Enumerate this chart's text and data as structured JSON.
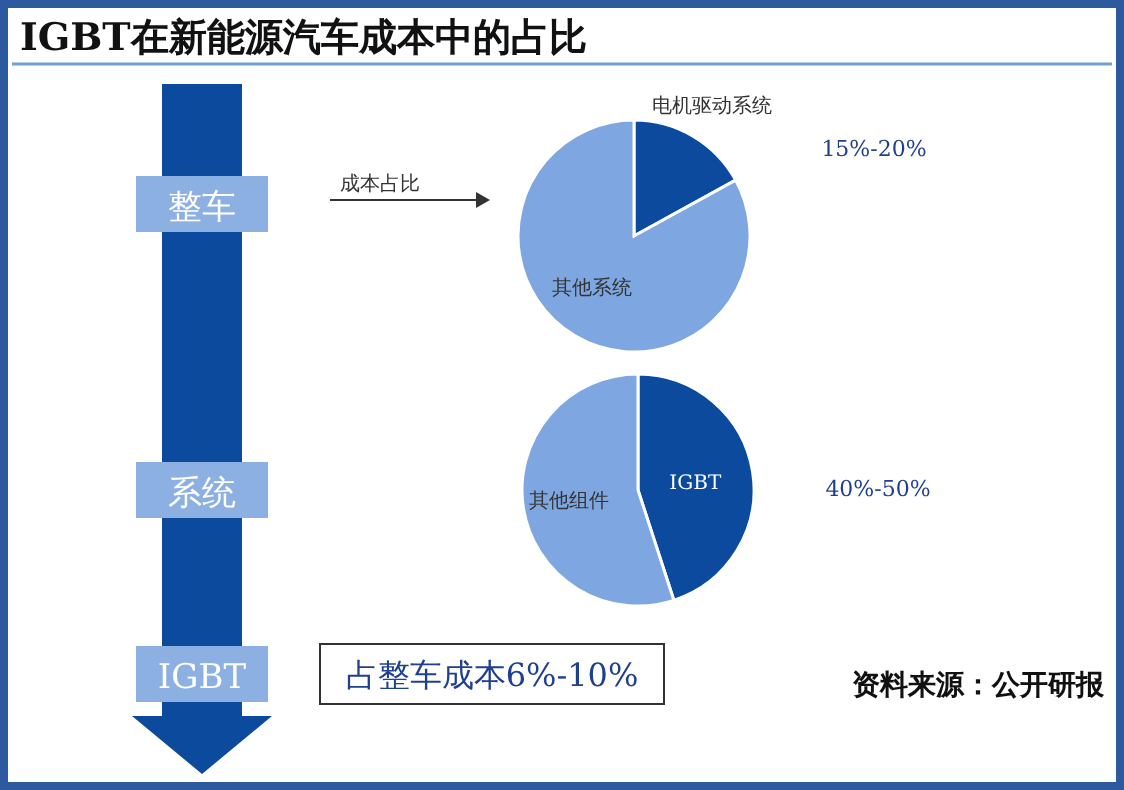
{
  "chart_data": [
    {
      "type": "pie",
      "title": "IGBT在新能源汽车成本中的占比",
      "categories": [
        "电机驱动系统",
        "其他系统"
      ],
      "values": [
        17,
        83
      ],
      "colors": [
        "#0b4a9c",
        "#7ea6e0"
      ],
      "annotations": [
        "15%-20%"
      ]
    },
    {
      "type": "pie",
      "categories": [
        "IGBT",
        "其他组件"
      ],
      "values": [
        45,
        55
      ],
      "colors": [
        "#0b4a9c",
        "#7ea6e0"
      ],
      "annotations": [
        "40%-50%"
      ]
    },
    {
      "type": "other",
      "annotations": [
        "整车",
        "系统",
        "IGBT",
        "成本占比",
        "占整车成本6%-10%",
        "资料来源：公开研报"
      ]
    }
  ]
}
